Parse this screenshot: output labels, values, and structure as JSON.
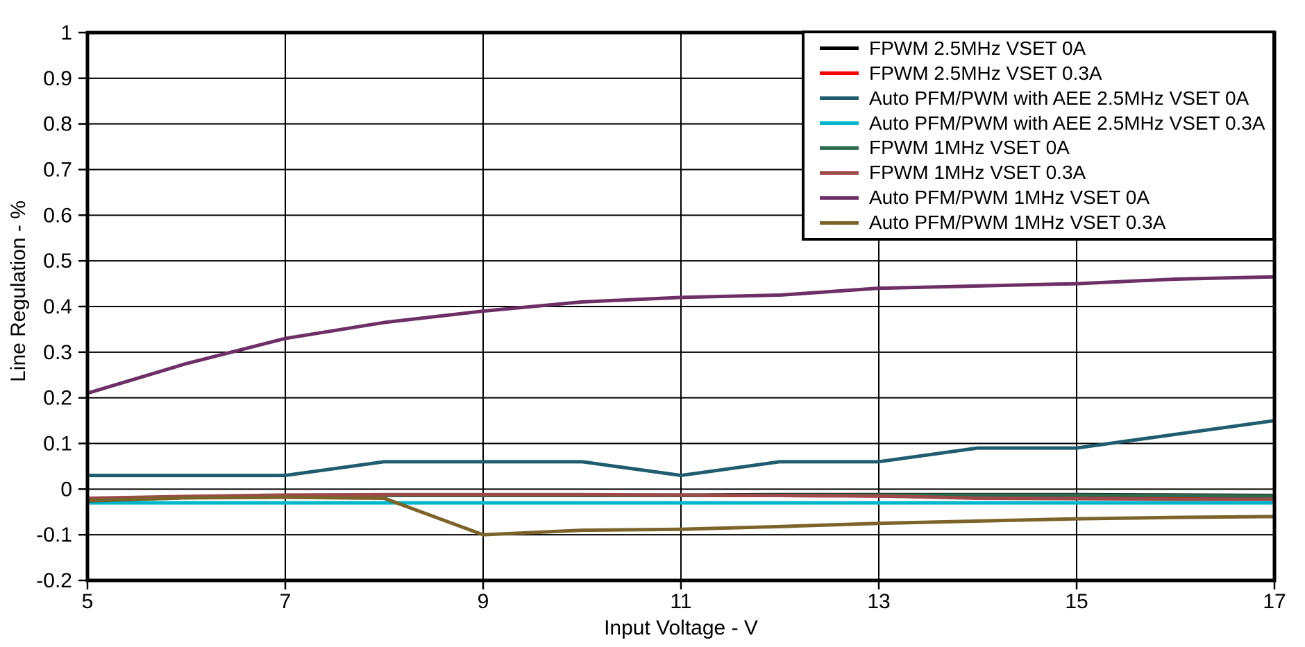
{
  "chart_data": {
    "type": "line",
    "title": "",
    "xlabel": "Input Voltage - V",
    "ylabel": "Line Regulation - %",
    "xlim": [
      5,
      17
    ],
    "ylim": [
      -0.2,
      1
    ],
    "grid": true,
    "legend_position": "top-right",
    "x_ticks": [
      {
        "value": 5,
        "label": "5"
      },
      {
        "value": 7,
        "label": "7"
      },
      {
        "value": 9,
        "label": "9"
      },
      {
        "value": 11,
        "label": "11"
      },
      {
        "value": 13,
        "label": "13"
      },
      {
        "value": 15,
        "label": "15"
      },
      {
        "value": 17,
        "label": "17"
      }
    ],
    "y_ticks": [
      {
        "value": 1,
        "label": "1"
      },
      {
        "value": 0.9,
        "label": "0.9"
      },
      {
        "value": 0.8,
        "label": "0.8"
      },
      {
        "value": 0.7,
        "label": "0.7"
      },
      {
        "value": 0.6,
        "label": "0.6"
      },
      {
        "value": 0.5,
        "label": "0.5"
      },
      {
        "value": 0.4,
        "label": "0.4"
      },
      {
        "value": 0.3,
        "label": "0.3"
      },
      {
        "value": 0.2,
        "label": "0.2"
      },
      {
        "value": 0.1,
        "label": "0.1"
      },
      {
        "value": 0,
        "label": "0"
      },
      {
        "value": -0.1,
        "label": "-0.1"
      },
      {
        "value": -0.2,
        "label": "-0.2"
      }
    ],
    "x": [
      5,
      6,
      7,
      8,
      9,
      10,
      11,
      12,
      13,
      14,
      15,
      16,
      17
    ],
    "series": [
      {
        "name": "FPWM 2.5MHz VSET 0A",
        "color": "#000000",
        "values": [
          -0.025,
          -0.018,
          -0.014,
          -0.013,
          -0.013,
          -0.013,
          -0.013,
          -0.012,
          -0.012,
          -0.012,
          -0.012,
          -0.013,
          -0.014
        ]
      },
      {
        "name": "FPWM 2.5MHz VSET 0.3A",
        "color": "#ff0000",
        "values": [
          -0.024,
          -0.018,
          -0.014,
          -0.013,
          -0.013,
          -0.013,
          -0.014,
          -0.014,
          -0.015,
          -0.019,
          -0.02,
          -0.021,
          -0.021
        ]
      },
      {
        "name": "Auto PFM/PWM with AEE 2.5MHz VSET 0A",
        "color": "#1f5c6d",
        "values": [
          0.03,
          0.03,
          0.03,
          0.06,
          0.06,
          0.06,
          0.03,
          0.06,
          0.06,
          0.09,
          0.09,
          0.12,
          0.15
        ]
      },
      {
        "name": "Auto PFM/PWM with AEE 2.5MHz VSET 0.3A",
        "color": "#00b5cc",
        "values": [
          -0.03,
          -0.03,
          -0.03,
          -0.03,
          -0.03,
          -0.03,
          -0.03,
          -0.03,
          -0.03,
          -0.03,
          -0.03,
          -0.03,
          -0.03
        ]
      },
      {
        "name": "FPWM 1MHz VSET 0A",
        "color": "#2e6b4e",
        "values": [
          -0.026,
          -0.019,
          -0.015,
          -0.014,
          -0.014,
          -0.014,
          -0.014,
          -0.013,
          -0.013,
          -0.013,
          -0.013,
          -0.014,
          -0.015
        ]
      },
      {
        "name": "FPWM 1MHz VSET 0.3A",
        "color": "#9c4a4a",
        "values": [
          -0.02,
          -0.016,
          -0.013,
          -0.012,
          -0.012,
          -0.012,
          -0.013,
          -0.014,
          -0.015,
          -0.02,
          -0.021,
          -0.022,
          -0.022
        ]
      },
      {
        "name": "Auto PFM/PWM 1MHz VSET 0A",
        "color": "#6d3066",
        "values": [
          0.21,
          0.275,
          0.33,
          0.365,
          0.39,
          0.41,
          0.42,
          0.425,
          0.44,
          0.445,
          0.45,
          0.46,
          0.465
        ]
      },
      {
        "name": "Auto PFM/PWM 1MHz VSET 0.3A",
        "color": "#7c6329",
        "values": [
          -0.025,
          -0.019,
          -0.018,
          -0.02,
          -0.1,
          -0.09,
          -0.088,
          -0.082,
          -0.075,
          -0.07,
          -0.065,
          -0.062,
          -0.06
        ]
      }
    ]
  }
}
